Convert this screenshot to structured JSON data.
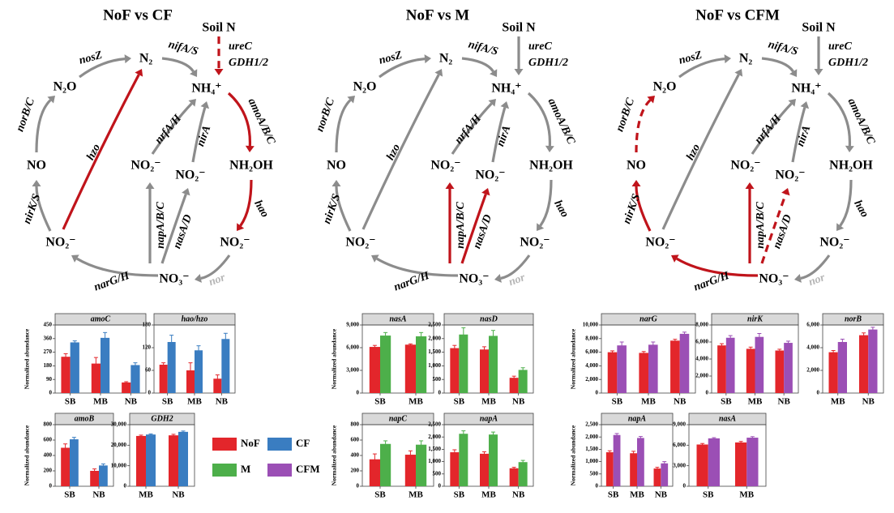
{
  "diagrams": [
    {
      "title": "NoF vs CF",
      "nodes": [
        "Soil N",
        "N₂",
        "N₂O",
        "NH₄⁺",
        "NO",
        "NO₂⁻",
        "NO₂⁻",
        "NH₂OH",
        "NO₂⁻",
        "NO₂⁻",
        "NO₃⁻"
      ],
      "edges": [
        {
          "labels": [
            "ureC",
            "GDH1/2"
          ],
          "color": "#c0141b",
          "dashed": true
        },
        {
          "labels": [
            "nosZ"
          ],
          "color": "#8c8c8c",
          "dashed": false
        },
        {
          "labels": [
            "nifA/S"
          ],
          "color": "#8c8c8c",
          "dashed": false
        },
        {
          "labels": [
            "norB/C"
          ],
          "color": "#8c8c8c",
          "dashed": false
        },
        {
          "labels": [
            "hzo"
          ],
          "color": "#c0141b",
          "dashed": false
        },
        {
          "labels": [
            "amoA/B/C"
          ],
          "color": "#c0141b",
          "dashed": false
        },
        {
          "labels": [
            "nrfA/H"
          ],
          "color": "#8c8c8c",
          "dashed": false
        },
        {
          "labels": [
            "nirA"
          ],
          "color": "#8c8c8c",
          "dashed": false
        },
        {
          "labels": [
            "nirK/S"
          ],
          "color": "#8c8c8c",
          "dashed": false
        },
        {
          "labels": [
            "hao"
          ],
          "color": "#c0141b",
          "dashed": false
        },
        {
          "labels": [
            "napA/B/C"
          ],
          "color": "#8c8c8c",
          "dashed": false
        },
        {
          "labels": [
            "nasA/D"
          ],
          "color": "#8c8c8c",
          "dashed": false
        },
        {
          "labels": [
            "narG/H"
          ],
          "color": "#8c8c8c",
          "dashed": false
        },
        {
          "labels": [
            "nor"
          ],
          "color": "#8c8c8c",
          "dashed": false,
          "label_color": "#b5b5b5"
        }
      ]
    },
    {
      "title": "NoF vs M",
      "nodes": [
        "Soil N",
        "N₂",
        "N₂O",
        "NH₄⁺",
        "NO",
        "NO₂⁻",
        "NO₂⁻",
        "NH₂OH",
        "NO₂⁻",
        "NO₂⁻",
        "NO₃⁻"
      ],
      "edges": [
        {
          "labels": [
            "ureC",
            "GDH1/2"
          ],
          "color": "#8c8c8c",
          "dashed": false
        },
        {
          "labels": [
            "nosZ"
          ],
          "color": "#8c8c8c",
          "dashed": false
        },
        {
          "labels": [
            "nifA/S"
          ],
          "color": "#8c8c8c",
          "dashed": false
        },
        {
          "labels": [
            "norB/C"
          ],
          "color": "#8c8c8c",
          "dashed": false
        },
        {
          "labels": [
            "hzo"
          ],
          "color": "#8c8c8c",
          "dashed": false
        },
        {
          "labels": [
            "amoA/B/C"
          ],
          "color": "#8c8c8c",
          "dashed": false
        },
        {
          "labels": [
            "nrfA/H"
          ],
          "color": "#8c8c8c",
          "dashed": false
        },
        {
          "labels": [
            "nirA"
          ],
          "color": "#8c8c8c",
          "dashed": false
        },
        {
          "labels": [
            "nirK/S"
          ],
          "color": "#8c8c8c",
          "dashed": false
        },
        {
          "labels": [
            "hao"
          ],
          "color": "#8c8c8c",
          "dashed": false
        },
        {
          "labels": [
            "napA/B/C"
          ],
          "color": "#c0141b",
          "dashed": false
        },
        {
          "labels": [
            "nasA/D"
          ],
          "color": "#c0141b",
          "dashed": false
        },
        {
          "labels": [
            "narG/H"
          ],
          "color": "#8c8c8c",
          "dashed": false
        },
        {
          "labels": [
            "nor"
          ],
          "color": "#8c8c8c",
          "dashed": false,
          "label_color": "#b5b5b5"
        }
      ]
    },
    {
      "title": "NoF vs CFM",
      "nodes": [
        "Soil N",
        "N₂",
        "N₂O",
        "NH₄⁺",
        "NO",
        "NO₂⁻",
        "NO₂⁻",
        "NH₂OH",
        "NO₂⁻",
        "NO₂⁻",
        "NO₃⁻"
      ],
      "edges": [
        {
          "labels": [
            "ureC",
            "GDH1/2"
          ],
          "color": "#8c8c8c",
          "dashed": false
        },
        {
          "labels": [
            "nosZ"
          ],
          "color": "#8c8c8c",
          "dashed": false
        },
        {
          "labels": [
            "nifA/S"
          ],
          "color": "#8c8c8c",
          "dashed": false
        },
        {
          "labels": [
            "norB/C"
          ],
          "color": "#c0141b",
          "dashed": true
        },
        {
          "labels": [
            "hzo"
          ],
          "color": "#8c8c8c",
          "dashed": false
        },
        {
          "labels": [
            "amoA/B/C"
          ],
          "color": "#8c8c8c",
          "dashed": false
        },
        {
          "labels": [
            "nrfA/H"
          ],
          "color": "#8c8c8c",
          "dashed": false
        },
        {
          "labels": [
            "nirA"
          ],
          "color": "#8c8c8c",
          "dashed": false
        },
        {
          "labels": [
            "nirK/S"
          ],
          "color": "#c0141b",
          "dashed": false
        },
        {
          "labels": [
            "hao"
          ],
          "color": "#8c8c8c",
          "dashed": false
        },
        {
          "labels": [
            "napA/B/C"
          ],
          "color": "#c0141b",
          "dashed": false
        },
        {
          "labels": [
            "nasA/D"
          ],
          "color": "#c0141b",
          "dashed": true
        },
        {
          "labels": [
            "narG/H"
          ],
          "color": "#c0141b",
          "dashed": false
        },
        {
          "labels": [
            "nor"
          ],
          "color": "#8c8c8c",
          "dashed": false,
          "label_color": "#b5b5b5"
        }
      ]
    }
  ],
  "chart_data": [
    {
      "type": "bar",
      "title": "amoC",
      "ylabel": "Normalized abundance",
      "categories": [
        "SB",
        "MB",
        "NB"
      ],
      "series": [
        {
          "name": "NoF",
          "color": "#e3262b",
          "values": [
            240,
            195,
            70
          ],
          "errors": [
            20,
            40,
            5
          ]
        },
        {
          "name": "CF",
          "color": "#3a7dc1",
          "values": [
            335,
            365,
            185
          ],
          "errors": [
            10,
            35,
            15
          ]
        }
      ],
      "ylim": [
        0,
        450
      ],
      "yticks": [
        0,
        90,
        180,
        270,
        360,
        450
      ]
    },
    {
      "type": "bar",
      "title": "hao/hzo",
      "categories": [
        "SB",
        "MB",
        "NB"
      ],
      "series": [
        {
          "name": "NoF",
          "color": "#e3262b",
          "values": [
            75,
            60,
            38
          ],
          "errors": [
            5,
            20,
            10
          ]
        },
        {
          "name": "CF",
          "color": "#3a7dc1",
          "values": [
            135,
            113,
            143
          ],
          "errors": [
            18,
            12,
            15
          ]
        }
      ],
      "ylim": [
        0,
        180
      ],
      "yticks": [
        0,
        60,
        120,
        180
      ]
    },
    {
      "type": "bar",
      "title": "amoB",
      "ylabel": "Normalized abundance",
      "categories": [
        "SB",
        "NB"
      ],
      "series": [
        {
          "name": "NoF",
          "color": "#e3262b",
          "values": [
            500,
            200
          ],
          "errors": [
            50,
            25
          ]
        },
        {
          "name": "CF",
          "color": "#3a7dc1",
          "values": [
            610,
            270
          ],
          "errors": [
            25,
            20
          ]
        }
      ],
      "ylim": [
        0,
        800
      ],
      "yticks": [
        0,
        200,
        400,
        600,
        800
      ]
    },
    {
      "type": "bar",
      "title": "GDH2",
      "categories": [
        "MB",
        "NB"
      ],
      "series": [
        {
          "name": "NoF",
          "color": "#e3262b",
          "values": [
            24500,
            24800
          ],
          "errors": [
            400,
            500
          ]
        },
        {
          "name": "CF",
          "color": "#3a7dc1",
          "values": [
            25200,
            26500
          ],
          "errors": [
            300,
            400
          ]
        }
      ],
      "ylim": [
        0,
        30000
      ],
      "yticks": [
        0,
        {
          "value": 10000,
          "label": "10,000"
        },
        {
          "value": 20000,
          "label": "20,000"
        },
        {
          "value": 30000,
          "label": "30,000"
        }
      ]
    },
    {
      "type": "bar",
      "title": "nasA",
      "ylabel": "Normalized abundance",
      "categories": [
        "SB",
        "MB"
      ],
      "series": [
        {
          "name": "NoF",
          "color": "#e3262b",
          "values": [
            6100,
            6400
          ],
          "errors": [
            200,
            100
          ]
        },
        {
          "name": "M",
          "color": "#4daf4a",
          "values": [
            7600,
            7500
          ],
          "errors": [
            400,
            500
          ]
        }
      ],
      "ylim": [
        0,
        9000
      ],
      "yticks": [
        0,
        {
          "value": 3000,
          "label": "3,000"
        },
        {
          "value": 6000,
          "label": "6,000"
        },
        {
          "value": 9000,
          "label": "9,000"
        }
      ]
    },
    {
      "type": "bar",
      "title": "nasD",
      "categories": [
        "SB",
        "MB",
        "NB"
      ],
      "series": [
        {
          "name": "NoF",
          "color": "#e3262b",
          "values": [
            1650,
            1600,
            560
          ],
          "errors": [
            100,
            100,
            60
          ]
        },
        {
          "name": "M",
          "color": "#4daf4a",
          "values": [
            2150,
            2100,
            850
          ],
          "errors": [
            250,
            200,
            80
          ]
        }
      ],
      "ylim": [
        0,
        2500
      ],
      "yticks": [
        0,
        500,
        {
          "value": 1000,
          "label": "1,000"
        },
        {
          "value": 1500,
          "label": "1,500"
        },
        {
          "value": 2000,
          "label": "2,000"
        },
        {
          "value": 2500,
          "label": "2,500"
        }
      ]
    },
    {
      "type": "bar",
      "title": "napC",
      "ylabel": "Normalized abundance",
      "categories": [
        "SB",
        "MB"
      ],
      "series": [
        {
          "name": "NoF",
          "color": "#e3262b",
          "values": [
            350,
            410
          ],
          "errors": [
            70,
            50
          ]
        },
        {
          "name": "M",
          "color": "#4daf4a",
          "values": [
            550,
            540
          ],
          "errors": [
            40,
            50
          ]
        }
      ],
      "ylim": [
        0,
        800
      ],
      "yticks": [
        0,
        200,
        400,
        600,
        800
      ]
    },
    {
      "type": "bar",
      "title": "napA",
      "categories": [
        "SB",
        "MB",
        "NB"
      ],
      "series": [
        {
          "name": "NoF",
          "color": "#e3262b",
          "values": [
            1380,
            1320,
            730
          ],
          "errors": [
            100,
            80,
            40
          ]
        },
        {
          "name": "M",
          "color": "#4daf4a",
          "values": [
            2130,
            2100,
            980
          ],
          "errors": [
            120,
            100,
            70
          ]
        }
      ],
      "ylim": [
        0,
        2500
      ],
      "yticks": [
        0,
        500,
        {
          "value": 1000,
          "label": "1,000"
        },
        {
          "value": 1500,
          "label": "1,500"
        },
        {
          "value": 2000,
          "label": "2,000"
        },
        {
          "value": 2500,
          "label": "2,500"
        }
      ]
    },
    {
      "type": "bar",
      "title": "narG",
      "ylabel": "Normalized abundance",
      "categories": [
        "SB",
        "MB",
        "NB"
      ],
      "series": [
        {
          "name": "NoF",
          "color": "#e3262b",
          "values": [
            6000,
            5900,
            7700
          ],
          "errors": [
            200,
            200,
            200
          ]
        },
        {
          "name": "CFM",
          "color": "#9b4fb5",
          "values": [
            7000,
            7100,
            8700
          ],
          "errors": [
            500,
            400,
            250
          ]
        }
      ],
      "ylim": [
        0,
        10000
      ],
      "yticks": [
        0,
        {
          "value": 2000,
          "label": "2,000"
        },
        {
          "value": 4000,
          "label": "4,000"
        },
        {
          "value": 6000,
          "label": "6,000"
        },
        {
          "value": 8000,
          "label": "8,000"
        },
        {
          "value": 10000,
          "label": "10,000"
        }
      ]
    },
    {
      "type": "bar",
      "title": "nirK",
      "categories": [
        "SB",
        "MB",
        "NB"
      ],
      "series": [
        {
          "name": "NoF",
          "color": "#e3262b",
          "values": [
            5600,
            5200,
            5000
          ],
          "errors": [
            200,
            200,
            150
          ]
        },
        {
          "name": "CFM",
          "color": "#9b4fb5",
          "values": [
            6500,
            6600,
            5900
          ],
          "errors": [
            250,
            400,
            200
          ]
        }
      ],
      "ylim": [
        0,
        8000
      ],
      "yticks": [
        0,
        {
          "value": 2000,
          "label": "2,000"
        },
        {
          "value": 4000,
          "label": "4,000"
        },
        {
          "value": 6000,
          "label": "6,000"
        },
        {
          "value": 8000,
          "label": "8,000"
        }
      ]
    },
    {
      "type": "bar",
      "title": "norB",
      "categories": [
        "MB",
        "NB"
      ],
      "series": [
        {
          "name": "NoF",
          "color": "#e3262b",
          "values": [
            3600,
            5100
          ],
          "errors": [
            150,
            200
          ]
        },
        {
          "name": "CFM",
          "color": "#9b4fb5",
          "values": [
            4500,
            5600
          ],
          "errors": [
            250,
            200
          ]
        }
      ],
      "ylim": [
        0,
        6000
      ],
      "yticks": [
        0,
        {
          "value": 2000,
          "label": "2,000"
        },
        {
          "value": 4000,
          "label": "4,000"
        },
        {
          "value": 6000,
          "label": "6,000"
        }
      ]
    },
    {
      "type": "bar",
      "title": "napA",
      "ylabel": "Normalized abundance",
      "categories": [
        "SB",
        "MB",
        "NB"
      ],
      "series": [
        {
          "name": "NoF",
          "color": "#e3262b",
          "values": [
            1380,
            1340,
            720
          ],
          "errors": [
            60,
            80,
            50
          ]
        },
        {
          "name": "CFM",
          "color": "#9b4fb5",
          "values": [
            2080,
            1960,
            930
          ],
          "errors": [
            60,
            60,
            70
          ]
        }
      ],
      "ylim": [
        0,
        2500
      ],
      "yticks": [
        0,
        500,
        {
          "value": 1000,
          "label": "1,000"
        },
        {
          "value": 1500,
          "label": "1,500"
        },
        {
          "value": 2000,
          "label": "2,000"
        },
        {
          "value": 2500,
          "label": "2,500"
        }
      ]
    },
    {
      "type": "bar",
      "title": "nasA",
      "categories": [
        "SB",
        "MB"
      ],
      "series": [
        {
          "name": "NoF",
          "color": "#e3262b",
          "values": [
            6100,
            6400
          ],
          "errors": [
            150,
            150
          ]
        },
        {
          "name": "CFM",
          "color": "#9b4fb5",
          "values": [
            7000,
            7100
          ],
          "errors": [
            100,
            150
          ]
        }
      ],
      "ylim": [
        0,
        9000
      ],
      "yticks": [
        0,
        {
          "value": 3000,
          "label": "3,000"
        },
        {
          "value": 6000,
          "label": "6,000"
        },
        {
          "value": 9000,
          "label": "9,000"
        }
      ]
    }
  ]
}
